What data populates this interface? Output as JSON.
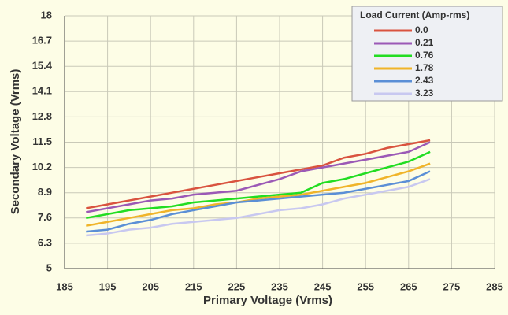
{
  "chart_data": {
    "type": "line",
    "xlabel": "Primary Voltage (Vrms)",
    "ylabel": "Secondary Voltage (Vrms)",
    "legend_title": "Load Current (Amp-rms)",
    "legend": "top-right",
    "grid": true,
    "xlim": [
      185,
      285
    ],
    "xticks": [
      185,
      195,
      205,
      215,
      225,
      235,
      245,
      255,
      265,
      275,
      285
    ],
    "ylim": [
      5,
      18
    ],
    "yticks": [
      5,
      6.3,
      7.6,
      8.9,
      10.2,
      11.5,
      12.8,
      14.1,
      15.4,
      16.7,
      18
    ],
    "x": [
      190,
      195,
      200,
      205,
      210,
      215,
      220,
      225,
      230,
      235,
      240,
      245,
      250,
      255,
      260,
      265,
      270
    ],
    "series": [
      {
        "name": "0.0",
        "color": "#d9533f",
        "values": [
          8.1,
          8.3,
          8.5,
          8.7,
          8.9,
          9.1,
          9.3,
          9.5,
          9.7,
          9.9,
          10.1,
          10.3,
          10.7,
          10.9,
          11.2,
          11.4,
          11.6
        ]
      },
      {
        "name": "0.21",
        "color": "#9b59b6",
        "values": [
          7.9,
          8.1,
          8.3,
          8.5,
          8.6,
          8.8,
          8.9,
          9.0,
          9.3,
          9.6,
          10.0,
          10.2,
          10.4,
          10.6,
          10.8,
          11.0,
          11.5
        ]
      },
      {
        "name": "0.76",
        "color": "#22dd22",
        "values": [
          7.6,
          7.8,
          8.0,
          8.1,
          8.2,
          8.4,
          8.5,
          8.6,
          8.7,
          8.8,
          8.9,
          9.4,
          9.6,
          9.9,
          10.2,
          10.5,
          11.0
        ]
      },
      {
        "name": "1.78",
        "color": "#f0b429",
        "values": [
          7.2,
          7.4,
          7.6,
          7.8,
          8.0,
          8.1,
          8.3,
          8.4,
          8.6,
          8.7,
          8.8,
          9.0,
          9.2,
          9.4,
          9.7,
          10.0,
          10.4
        ]
      },
      {
        "name": "2.43",
        "color": "#5b8fd6",
        "values": [
          6.9,
          7.0,
          7.3,
          7.5,
          7.8,
          8.0,
          8.2,
          8.4,
          8.5,
          8.6,
          8.7,
          8.8,
          8.9,
          9.1,
          9.3,
          9.5,
          10.0
        ]
      },
      {
        "name": "3.23",
        "color": "#c8c8f0",
        "values": [
          6.7,
          6.8,
          7.0,
          7.1,
          7.3,
          7.4,
          7.5,
          7.6,
          7.8,
          8.0,
          8.1,
          8.3,
          8.6,
          8.8,
          9.0,
          9.2,
          9.6
        ]
      }
    ]
  }
}
